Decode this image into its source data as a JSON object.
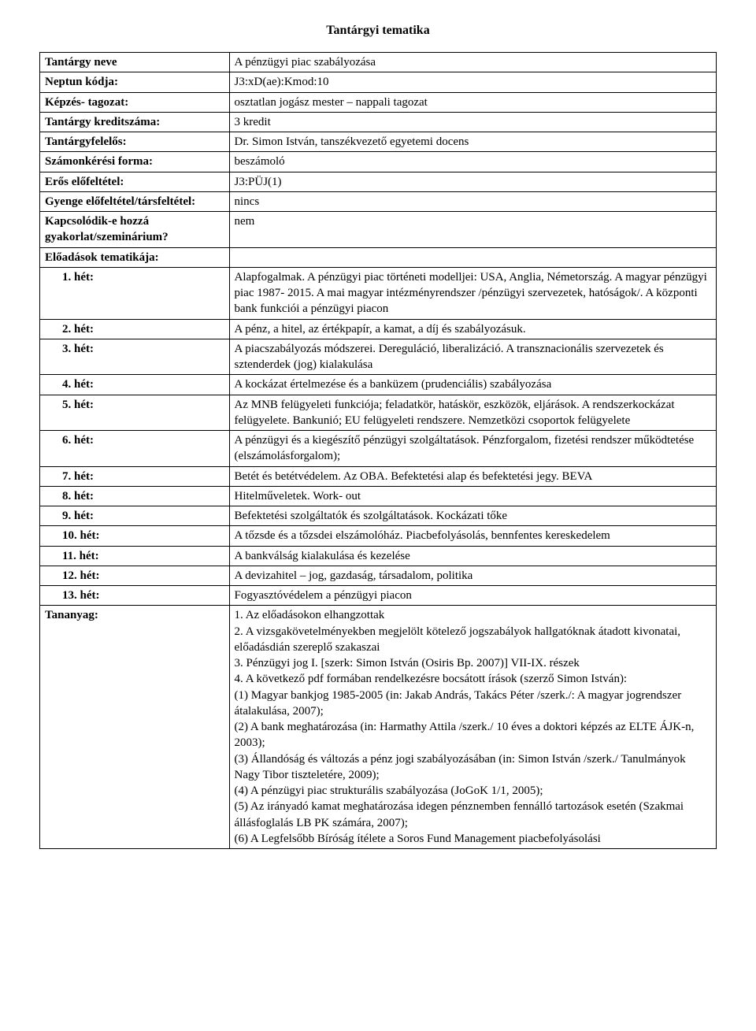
{
  "title": "Tantárgyi tematika",
  "rows": {
    "r1_label": "Tantárgy neve",
    "r1_value": "A pénzügyi piac szabályozása",
    "r2_label": "Neptun kódja:",
    "r2_value": "J3:xD(ae):Kmod:10",
    "r3_label": "Képzés- tagozat:",
    "r3_value": "osztatlan jogász mester – nappali tagozat",
    "r4_label": "Tantárgy kreditszáma:",
    "r4_value": "3 kredit",
    "r5_label": "Tantárgyfelelős:",
    "r5_value": "Dr. Simon István, tanszékvezető egyetemi docens",
    "r6_label": "Számonkérési forma:",
    "r6_value": "beszámoló",
    "r7_label": "Erős előfeltétel:",
    "r7_value": "J3:PÜJ(1)",
    "r8_label": "Gyenge előfeltétel/társfeltétel:",
    "r8_value": "nincs",
    "r9_label": "Kapcsolódik-e hozzá gyakorlat/szeminárium?",
    "r9_value": "nem",
    "r10_label": "Előadások tematikája:"
  },
  "weeks": {
    "w1_label": "1.  hét:",
    "w1_value": "Alapfogalmak. A pénzügyi piac történeti modelljei: USA, Anglia, Németország. A magyar pénzügyi piac 1987- 2015. A mai magyar intézményrendszer /pénzügyi szervezetek, hatóságok/. A központi bank funkciói a pénzügyi piacon",
    "w2_label": "2.  hét:",
    "w2_value": "A pénz, a hitel, az értékpapír, a kamat, a díj és szabályozásuk.",
    "w3_label": "3.  hét:",
    "w3_value": "A piacszabályozás módszerei. Dereguláció, liberalizáció. A transznacionális szervezetek és sztenderdek (jog) kialakulása",
    "w4_label": "4.  hét:",
    "w4_value": "A kockázat értelmezése és a banküzem (prudenciális) szabályozása",
    "w5_label": "5.  hét:",
    "w5_value": "Az MNB felügyeleti funkciója; feladatkör, hatáskör, eszközök, eljárások. A rendszerkockázat felügyelete. Bankunió; EU felügyeleti rendszere. Nemzetközi csoportok felügyelete",
    "w6_label": "6.  hét:",
    "w6_value": "A pénzügyi és a kiegészítő pénzügyi szolgáltatások. Pénzforgalom, fizetési rendszer működtetése (elszámolásforgalom);",
    "w7_label": "7.  hét:",
    "w7_value": "Betét és betétvédelem. Az OBA. Befektetési alap és befektetési jegy. BEVA",
    "w8_label": "8.  hét:",
    "w8_value": "Hitelműveletek. Work- out",
    "w9_label": "9.   hét:",
    "w9_value": "Befektetési szolgáltatók és szolgáltatások. Kockázati tőke",
    "w10_label": "10. hét:",
    "w10_value": "A tőzsde és a tőzsdei elszámolóház. Piacbefolyásolás, bennfentes kereskedelem",
    "w11_label": "11. hét:",
    "w11_value": "A bankválság kialakulása és kezelése",
    "w12_label": "12. hét:",
    "w12_value": "A devizahitel – jog, gazdaság, társadalom, politika",
    "w13_label": "13. hét:",
    "w13_value": "Fogyasztóvédelem a pénzügyi piacon"
  },
  "tananyag_label": "Tananyag:",
  "tananyag_lines": [
    "1. Az előadásokon elhangzottak",
    "2. A vizsgakövetelményekben megjelölt kötelező jogszabályok  hallgatóknak átadott kivonatai, előadásdián szereplő szakaszai",
    "3. Pénzügyi jog I. [szerk: Simon István (Osiris Bp. 2007)] VII-IX. részek",
    "4. A következő pdf formában rendelkezésre bocsátott írások (szerző Simon István):",
    "(1) Magyar bankjog 1985-2005 (in: Jakab András, Takács Péter /szerk./: A magyar jogrendszer átalakulása, 2007);",
    "(2)  A bank meghatározása (in: Harmathy Attila /szerk./ 10 éves a doktori képzés az ELTE ÁJK-n, 2003);",
    "(3) Állandóság és változás a pénz jogi szabályozásában (in: Simon István /szerk./ Tanulmányok Nagy Tibor tiszteletére, 2009);",
    "(4)  A pénzügyi piac strukturális szabályozása (JoGoK 1/1, 2005);",
    "(5) Az irányadó kamat meghatározása idegen pénznemben fennálló tartozások esetén (Szakmai állásfoglalás LB PK számára, 2007);",
    "(6) A Legfelsőbb Bíróság ítélete a Soros Fund Management piacbefolyásolási"
  ]
}
